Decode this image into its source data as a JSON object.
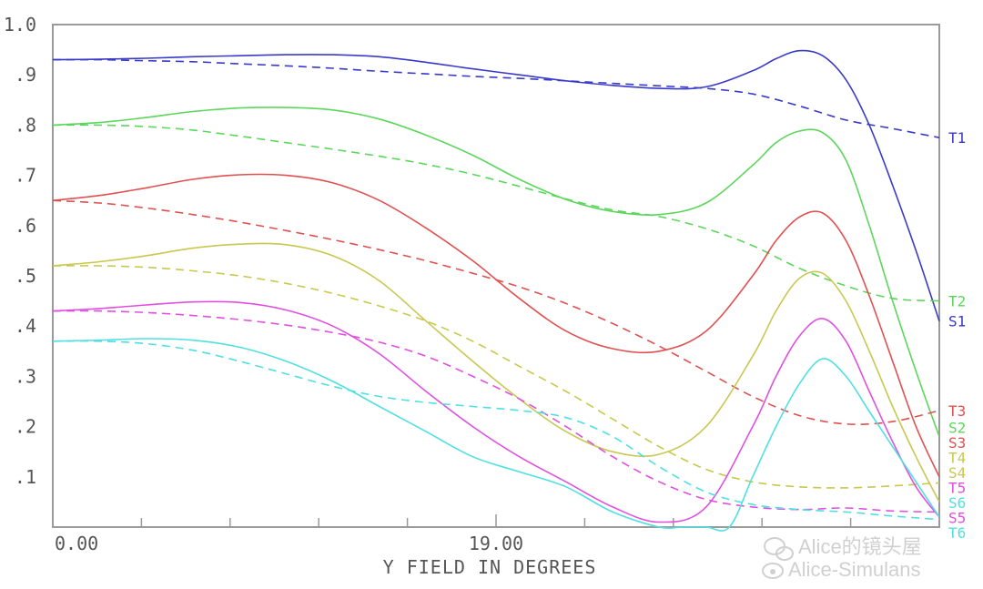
{
  "chart_data": {
    "type": "line",
    "title": "",
    "xlabel": "Y FIELD IN DEGREES",
    "ylabel": "",
    "xlim": [
      0,
      38
    ],
    "ylim": [
      0,
      1.0
    ],
    "x_tick_labels": [
      {
        "value": 0,
        "label": "0.00"
      },
      {
        "value": 19,
        "label": "19.00"
      }
    ],
    "y_tick_labels": [
      {
        "value": 0.1,
        "label": ".1"
      },
      {
        "value": 0.2,
        "label": ".2"
      },
      {
        "value": 0.3,
        "label": ".3"
      },
      {
        "value": 0.4,
        "label": ".4"
      },
      {
        "value": 0.5,
        "label": ".5"
      },
      {
        "value": 0.6,
        "label": ".6"
      },
      {
        "value": 0.7,
        "label": ".7"
      },
      {
        "value": 0.8,
        "label": ".8"
      },
      {
        "value": 0.9,
        "label": ".9"
      },
      {
        "value": 1.0,
        "label": "1.0"
      }
    ],
    "x_minor_ticks": [
      3.8,
      7.6,
      11.4,
      15.2,
      22.8,
      26.6,
      30.4,
      34.2
    ],
    "grid": false,
    "legend": "right edge, labels at line ends",
    "series": [
      {
        "name": "T1",
        "style": "dashed",
        "color": "#3a3ac8",
        "x": [
          0,
          2,
          4,
          6,
          8,
          10,
          12,
          14,
          16,
          18,
          20,
          22,
          24,
          26,
          28,
          30,
          32,
          34,
          36,
          38
        ],
        "y": [
          0.93,
          0.93,
          0.928,
          0.926,
          0.922,
          0.918,
          0.913,
          0.907,
          0.902,
          0.897,
          0.893,
          0.888,
          0.883,
          0.878,
          0.873,
          0.862,
          0.838,
          0.81,
          0.793,
          0.775
        ]
      },
      {
        "name": "S1",
        "style": "solid",
        "color": "#3a3ac8",
        "x": [
          0,
          2,
          4,
          6,
          8,
          10,
          12,
          14,
          16,
          18,
          20,
          22,
          24,
          26,
          28,
          30,
          31,
          32,
          33,
          34,
          35,
          36,
          37,
          38
        ],
        "y": [
          0.93,
          0.931,
          0.933,
          0.936,
          0.938,
          0.94,
          0.94,
          0.936,
          0.925,
          0.912,
          0.9,
          0.888,
          0.879,
          0.873,
          0.876,
          0.908,
          0.932,
          0.948,
          0.938,
          0.89,
          0.8,
          0.68,
          0.55,
          0.41
        ]
      },
      {
        "name": "T2",
        "style": "dashed",
        "color": "#5cd65c",
        "x": [
          0,
          2,
          4,
          6,
          8,
          10,
          12,
          14,
          16,
          18,
          20,
          22,
          24,
          26,
          28,
          30,
          32,
          34,
          36,
          38
        ],
        "y": [
          0.8,
          0.8,
          0.797,
          0.79,
          0.778,
          0.765,
          0.752,
          0.738,
          0.722,
          0.702,
          0.678,
          0.653,
          0.631,
          0.618,
          0.594,
          0.56,
          0.515,
          0.48,
          0.455,
          0.45
        ]
      },
      {
        "name": "S2",
        "style": "solid",
        "color": "#5cd65c",
        "x": [
          0,
          2,
          4,
          6,
          8,
          10,
          12,
          14,
          16,
          18,
          20,
          22,
          24,
          26,
          28,
          30,
          31,
          32,
          33,
          34,
          35,
          36,
          37,
          38
        ],
        "y": [
          0.8,
          0.805,
          0.815,
          0.827,
          0.834,
          0.835,
          0.83,
          0.812,
          0.78,
          0.74,
          0.692,
          0.652,
          0.628,
          0.622,
          0.645,
          0.72,
          0.765,
          0.788,
          0.785,
          0.73,
          0.6,
          0.45,
          0.31,
          0.18
        ]
      },
      {
        "name": "T3",
        "style": "dashed",
        "color": "#e05050",
        "x": [
          0,
          2,
          4,
          6,
          8,
          10,
          12,
          14,
          16,
          18,
          20,
          22,
          24,
          26,
          28,
          30,
          32,
          34,
          36,
          38
        ],
        "y": [
          0.65,
          0.645,
          0.635,
          0.622,
          0.607,
          0.59,
          0.572,
          0.552,
          0.53,
          0.505,
          0.478,
          0.445,
          0.405,
          0.36,
          0.31,
          0.26,
          0.222,
          0.205,
          0.21,
          0.232
        ]
      },
      {
        "name": "S3",
        "style": "solid",
        "color": "#e05050",
        "x": [
          0,
          2,
          4,
          6,
          8,
          10,
          12,
          14,
          16,
          18,
          20,
          22,
          24,
          26,
          28,
          30,
          31,
          32,
          33,
          34,
          35,
          36,
          37,
          38
        ],
        "y": [
          0.65,
          0.66,
          0.675,
          0.692,
          0.701,
          0.7,
          0.685,
          0.65,
          0.595,
          0.53,
          0.455,
          0.39,
          0.355,
          0.35,
          0.39,
          0.5,
          0.57,
          0.617,
          0.625,
          0.57,
          0.46,
          0.33,
          0.2,
          0.1
        ]
      },
      {
        "name": "T4",
        "style": "dashed",
        "color": "#c8c850",
        "x": [
          0,
          2,
          4,
          6,
          8,
          10,
          12,
          14,
          16,
          18,
          20,
          22,
          24,
          26,
          28,
          30,
          32,
          34,
          36,
          38
        ],
        "y": [
          0.52,
          0.52,
          0.517,
          0.51,
          0.5,
          0.485,
          0.465,
          0.44,
          0.41,
          0.37,
          0.32,
          0.27,
          0.215,
          0.16,
          0.115,
          0.09,
          0.08,
          0.078,
          0.082,
          0.088
        ]
      },
      {
        "name": "S4",
        "style": "solid",
        "color": "#c8c850",
        "x": [
          0,
          2,
          4,
          6,
          8,
          10,
          12,
          14,
          16,
          18,
          20,
          22,
          24,
          26,
          28,
          30,
          31,
          32,
          33,
          34,
          35,
          36,
          37,
          38
        ],
        "y": [
          0.52,
          0.528,
          0.54,
          0.555,
          0.563,
          0.562,
          0.54,
          0.49,
          0.41,
          0.33,
          0.255,
          0.19,
          0.15,
          0.145,
          0.2,
          0.34,
          0.43,
          0.495,
          0.505,
          0.45,
          0.35,
          0.24,
          0.14,
          0.05
        ]
      },
      {
        "name": "T5",
        "style": "dashed",
        "color": "#e050e0",
        "x": [
          0,
          2,
          4,
          6,
          8,
          10,
          12,
          14,
          16,
          18,
          20,
          22,
          24,
          26,
          28,
          30,
          32,
          34,
          36,
          38
        ],
        "y": [
          0.43,
          0.43,
          0.427,
          0.421,
          0.413,
          0.402,
          0.387,
          0.368,
          0.34,
          0.3,
          0.255,
          0.2,
          0.14,
          0.09,
          0.055,
          0.04,
          0.035,
          0.038,
          0.032,
          0.03
        ]
      },
      {
        "name": "S5",
        "style": "solid",
        "color": "#e050e0",
        "x": [
          0,
          2,
          4,
          6,
          8,
          10,
          12,
          14,
          16,
          18,
          20,
          22,
          24,
          26,
          28,
          30,
          31,
          32,
          33,
          34,
          35,
          36,
          37,
          38
        ],
        "y": [
          0.43,
          0.435,
          0.442,
          0.448,
          0.447,
          0.432,
          0.4,
          0.345,
          0.27,
          0.2,
          0.14,
          0.09,
          0.04,
          0.01,
          0.04,
          0.2,
          0.3,
          0.38,
          0.415,
          0.37,
          0.27,
          0.17,
          0.08,
          0.02
        ]
      },
      {
        "name": "T6",
        "style": "dashed",
        "color": "#50e0e0",
        "x": [
          0,
          2,
          4,
          6,
          8,
          10,
          12,
          14,
          16,
          18,
          20,
          22,
          24,
          26,
          28,
          30,
          32,
          34,
          36,
          38
        ],
        "y": [
          0.37,
          0.37,
          0.365,
          0.352,
          0.33,
          0.305,
          0.28,
          0.26,
          0.248,
          0.24,
          0.232,
          0.218,
          0.18,
          0.12,
          0.07,
          0.045,
          0.035,
          0.03,
          0.022,
          0.015
        ]
      },
      {
        "name": "S6",
        "style": "solid",
        "color": "#50e0e0",
        "x": [
          0,
          2,
          4,
          6,
          8,
          10,
          12,
          14,
          16,
          18,
          20,
          22,
          24,
          26,
          27,
          28,
          29,
          30,
          31,
          32,
          33,
          34,
          35,
          36,
          37,
          38
        ],
        "y": [
          0.37,
          0.372,
          0.375,
          0.372,
          0.358,
          0.33,
          0.29,
          0.24,
          0.19,
          0.14,
          0.11,
          0.08,
          0.03,
          0.0,
          0.0,
          0.0,
          0.0,
          0.1,
          0.2,
          0.285,
          0.335,
          0.3,
          0.23,
          0.16,
          0.09,
          0.02
        ]
      }
    ]
  },
  "legend": [
    {
      "label": "T1",
      "color": "#3a3ac8"
    },
    {
      "label": "T2",
      "color": "#5cd65c"
    },
    {
      "label": "S1",
      "color": "#3a3ac8"
    },
    {
      "label": "T3",
      "color": "#e05050"
    },
    {
      "label": "S6",
      "color": "#50e0e0"
    },
    {
      "label": "S2",
      "color": "#5cd65c"
    },
    {
      "label": "S5",
      "color": "#e050e0"
    },
    {
      "label": "S4",
      "color": "#c8c850"
    },
    {
      "label": "S3",
      "color": "#e05050"
    },
    {
      "label": "T4",
      "color": "#c8c850"
    },
    {
      "label": "T5",
      "color": "#e050e0"
    },
    {
      "label": "T6",
      "color": "#50e0e0"
    }
  ],
  "watermark": {
    "line1": "Alice的镜头屋",
    "line2": "Alice-Simulans"
  }
}
